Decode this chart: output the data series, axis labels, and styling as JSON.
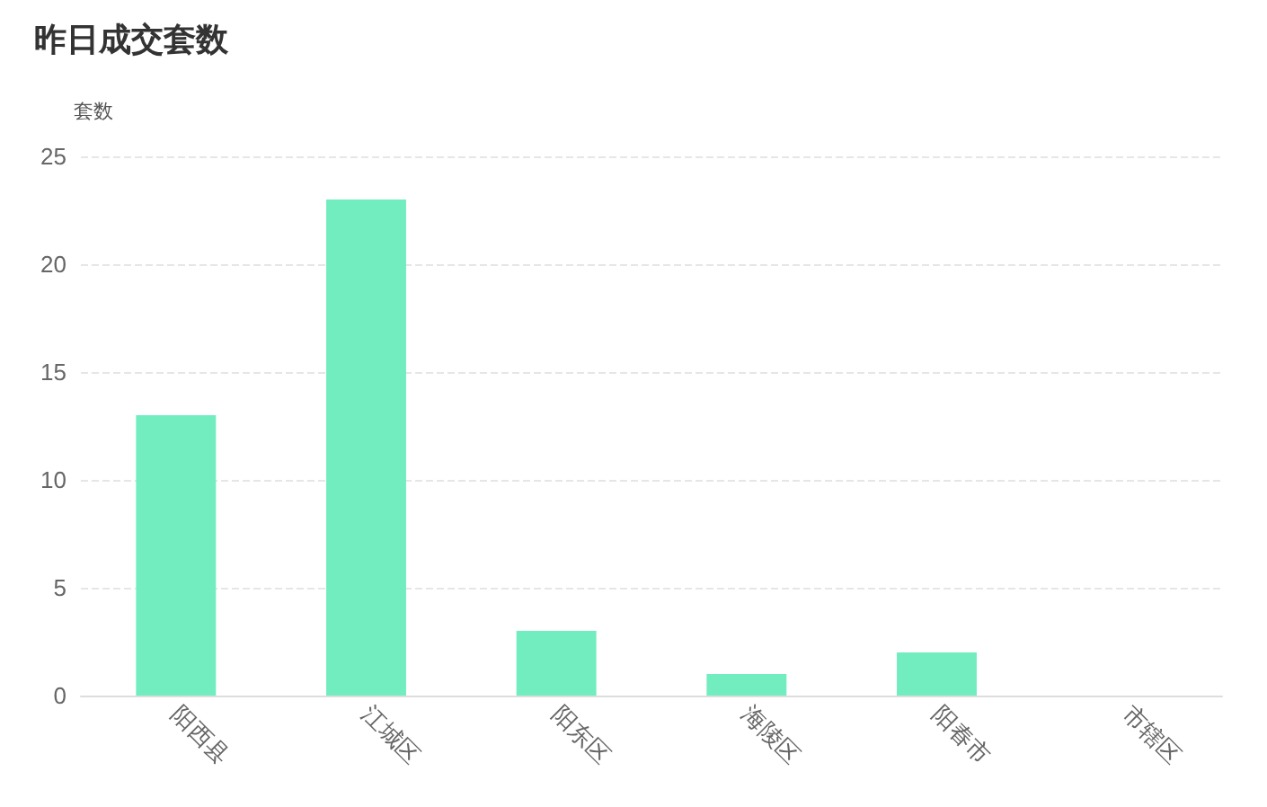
{
  "chart_data": {
    "type": "bar",
    "title": "昨日成交套数",
    "ylabel": "套数",
    "categories": [
      "阳西县",
      "江城区",
      "阳东区",
      "海陵区",
      "阳春市",
      "市辖区"
    ],
    "values": [
      13,
      23,
      3,
      1,
      2,
      0
    ],
    "color": "#72edbf",
    "ylim": [
      0,
      25
    ],
    "yticks": [
      0,
      5,
      10,
      15,
      20,
      25
    ],
    "grid": "y"
  }
}
